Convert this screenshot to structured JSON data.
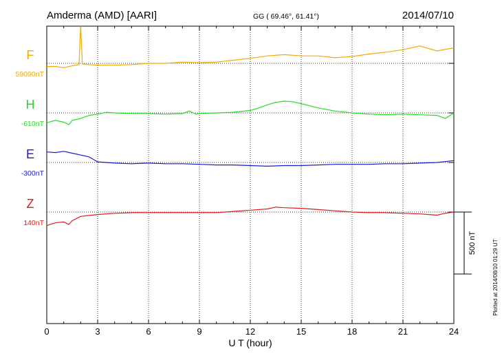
{
  "header": {
    "station": "Amderma (AMD)  [AARI]",
    "coords": "GG ( 69.46°,  61.41°)",
    "date": "2014/07/10"
  },
  "side_note": "Plotted at 2014/08/10 01:29 UT",
  "scale_bar_label": "500 nT",
  "colors": {
    "F": "#f5a800",
    "H": "#22dd22",
    "E": "#1a1acc",
    "Z": "#dd1a1a",
    "axis": "#000000"
  },
  "chart_data": {
    "type": "line",
    "xlabel": "U T (hour)",
    "xlim": [
      0,
      24
    ],
    "x_ticks": [
      0,
      3,
      6,
      9,
      12,
      15,
      18,
      21,
      24
    ],
    "x_tick_labels": [
      "0",
      "3",
      "6",
      "9",
      "12",
      "15",
      "18",
      "21",
      "24"
    ],
    "y_units": "nT",
    "y_range_nT": [
      -1500,
      900
    ],
    "scale_bar_nT": 500,
    "grid": true,
    "series": [
      {
        "name": "F",
        "baseline_label": "59090nT",
        "offset_nT": 600,
        "x": [
          0,
          0.5,
          1,
          1.5,
          1.9,
          2.0,
          2.1,
          2.5,
          3,
          4,
          5,
          6,
          7,
          8,
          9,
          10,
          11,
          12,
          13,
          14,
          15,
          16,
          17,
          18,
          19,
          20,
          21,
          22,
          23,
          24
        ],
        "y": [
          -25,
          -25,
          -35,
          -20,
          -10,
          300,
          -5,
          -10,
          -15,
          -15,
          -10,
          0,
          0,
          10,
          5,
          10,
          25,
          40,
          60,
          70,
          60,
          60,
          45,
          55,
          75,
          90,
          110,
          140,
          100,
          125
        ]
      },
      {
        "name": "H",
        "baseline_label": "-610nT",
        "offset_nT": 200,
        "x": [
          0,
          0.5,
          1,
          1.3,
          1.5,
          2,
          2.5,
          3,
          3.5,
          4,
          5,
          6,
          7,
          8,
          8.4,
          8.8,
          9,
          10,
          11,
          12,
          12.5,
          13,
          13.5,
          14,
          14.5,
          15,
          16,
          17,
          18,
          19,
          20,
          21,
          22,
          23,
          23.5,
          24
        ],
        "y": [
          -80,
          -60,
          -75,
          -95,
          -60,
          -45,
          -20,
          -10,
          5,
          0,
          -5,
          -5,
          -10,
          -5,
          15,
          -10,
          -5,
          0,
          5,
          20,
          40,
          65,
          85,
          95,
          90,
          75,
          40,
          15,
          0,
          -10,
          -15,
          -10,
          -15,
          -20,
          -45,
          0
        ]
      },
      {
        "name": "E",
        "baseline_label": "-300nT",
        "offset_nT": -200,
        "x": [
          0,
          0.5,
          1,
          1.5,
          2,
          2.5,
          2.8,
          3,
          3.5,
          4,
          5,
          6,
          7,
          8,
          9,
          10,
          11,
          12,
          13,
          14,
          15,
          16,
          17,
          18,
          19,
          20,
          21,
          22,
          23,
          24
        ],
        "y": [
          85,
          80,
          90,
          75,
          60,
          45,
          20,
          5,
          0,
          -5,
          -10,
          -5,
          -10,
          -10,
          -15,
          -20,
          -20,
          -25,
          -30,
          -25,
          -25,
          -20,
          -15,
          -15,
          -15,
          -10,
          -10,
          -5,
          0,
          15
        ]
      },
      {
        "name": "Z",
        "baseline_label": "140nT",
        "offset_nT": -600,
        "x": [
          0,
          0.3,
          0.6,
          1,
          1.3,
          1.5,
          2,
          3,
          4,
          5,
          6,
          7,
          8,
          9,
          10,
          11,
          12,
          13,
          13.5,
          14,
          15,
          16,
          17,
          18,
          19,
          20,
          21,
          22,
          23,
          23.5,
          24
        ],
        "y": [
          -110,
          -95,
          -85,
          -80,
          -100,
          -70,
          -35,
          -20,
          -10,
          -5,
          -5,
          -5,
          -5,
          -5,
          -5,
          5,
          15,
          25,
          40,
          35,
          30,
          20,
          10,
          0,
          -5,
          -5,
          -10,
          -15,
          -25,
          -10,
          0
        ]
      }
    ]
  }
}
